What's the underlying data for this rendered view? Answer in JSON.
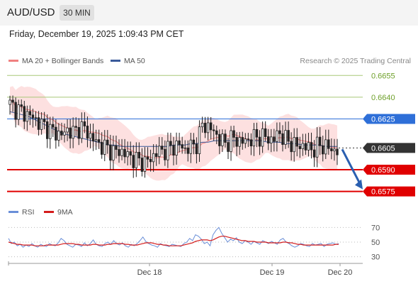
{
  "header": {
    "symbol": "AUD/USD",
    "timeframe": "30 MIN"
  },
  "datetime": "Friday, December 19, 2025 1:09:43 PM CET",
  "legend": {
    "ma20_bb": "MA 20 + Bollinger Bands",
    "ma50": "MA 50",
    "research": "Research © 2025 Trading Central",
    "colors": {
      "ma20": "#f08080",
      "ma50": "#3a5a9a"
    }
  },
  "rsi_legend": {
    "rsi": "RSI",
    "ma9": "9MA",
    "colors": {
      "rsi": "#6a8fd8",
      "ma9": "#d41c1c"
    }
  },
  "chart_data": [
    {
      "type": "candlestick",
      "ylim": [
        0.6565,
        0.6662
      ],
      "levels": [
        {
          "value": 0.6655,
          "label": "0.6655",
          "color": "#a8c878",
          "style": "line",
          "badge": "green-text"
        },
        {
          "value": 0.664,
          "label": "0.6640",
          "color": "#a8c878",
          "style": "line",
          "badge": "green-text"
        },
        {
          "value": 0.6625,
          "label": "0.6625",
          "color": "#2e6fd8",
          "style": "line",
          "badge": "blue"
        },
        {
          "value": 0.6605,
          "label": "0.6605",
          "color": "#333333",
          "style": "dotted",
          "badge": "dark"
        },
        {
          "value": 0.659,
          "label": "0.6590",
          "color": "#e00000",
          "style": "line",
          "badge": "red"
        },
        {
          "value": 0.6575,
          "label": "0.6575",
          "color": "#e00000",
          "style": "line",
          "badge": "red"
        }
      ],
      "x_ticks": [
        "Dec 18",
        "Dec 19",
        "Dec 20"
      ],
      "close_path": [
        0.6635,
        0.6632,
        0.663,
        0.6628,
        0.6626,
        0.6622,
        0.662,
        0.6617,
        0.6615,
        0.6614,
        0.6618,
        0.6615,
        0.662,
        0.6617,
        0.6612,
        0.6608,
        0.6606,
        0.6604,
        0.6602,
        0.6603,
        0.66,
        0.6598,
        0.6596,
        0.6595,
        0.6597,
        0.6602,
        0.6603,
        0.6604,
        0.6606,
        0.6607,
        0.6604,
        0.6606,
        0.6608,
        0.6622,
        0.6619,
        0.6616,
        0.661,
        0.6608,
        0.6612,
        0.661,
        0.6609,
        0.6611,
        0.6612,
        0.6613,
        0.6612,
        0.661,
        0.6616,
        0.6611,
        0.6609,
        0.6606,
        0.6607,
        0.6605,
        0.6604,
        0.6607,
        0.6606,
        0.6604,
        0.6603
      ],
      "ma50_path": [
        0.663,
        0.6629,
        0.6628,
        0.6627,
        0.6625,
        0.6623,
        0.6621,
        0.6619,
        0.6617,
        0.6615,
        0.6614,
        0.6613,
        0.6612,
        0.6611,
        0.661,
        0.6609,
        0.6608,
        0.6607,
        0.6607,
        0.6606,
        0.6606,
        0.6606,
        0.6606,
        0.6606,
        0.6606,
        0.6606,
        0.6606,
        0.6606,
        0.6607,
        0.6607,
        0.6607,
        0.6608,
        0.6608,
        0.6609,
        0.6609,
        0.661,
        0.661,
        0.661,
        0.661,
        0.661,
        0.661,
        0.661,
        0.661,
        0.661,
        0.6609,
        0.6609,
        0.6609,
        0.6608,
        0.6608,
        0.6608,
        0.6607,
        0.6607,
        0.6607,
        0.6607,
        0.6606,
        0.6606,
        0.6606
      ],
      "arrow": {
        "from": 0.6605,
        "to": 0.6575
      }
    },
    {
      "type": "line",
      "name": "RSI",
      "ylim": [
        20,
        80
      ],
      "y_ticks": [
        70,
        50,
        30
      ],
      "rsi": [
        55,
        48,
        50,
        45,
        47,
        43,
        46,
        44,
        48,
        45,
        43,
        47,
        45,
        44,
        48,
        46,
        45,
        49,
        55,
        52,
        47,
        45,
        43,
        47,
        46,
        44,
        49,
        45,
        48,
        53,
        47,
        45,
        44,
        48,
        50,
        47,
        52,
        48,
        46,
        49,
        45,
        43,
        47,
        45,
        48,
        52,
        57,
        51,
        48,
        46,
        45,
        43,
        48,
        46,
        45,
        44,
        47,
        46,
        45,
        44,
        48,
        50,
        55,
        52,
        60,
        58,
        54,
        48,
        50,
        45,
        60,
        66,
        70,
        62,
        56,
        50,
        54,
        52,
        56,
        50,
        48,
        52,
        50,
        47,
        51,
        49,
        47,
        52,
        50,
        48,
        51,
        49,
        47,
        53,
        55,
        50,
        48,
        45,
        43,
        45,
        48,
        47,
        45,
        44,
        48,
        46,
        47,
        48,
        44,
        47,
        48,
        49,
        47,
        48
      ],
      "ma9": [
        50,
        49,
        48,
        47,
        47,
        46,
        46,
        46,
        46,
        45,
        45,
        45,
        45,
        46,
        46,
        46,
        46,
        46,
        47,
        48,
        48,
        48,
        48,
        47,
        47,
        46,
        46,
        46,
        46,
        47,
        47,
        46,
        46,
        46,
        47,
        47,
        48,
        48,
        48,
        48,
        47,
        47,
        46,
        46,
        46,
        47,
        48,
        49,
        49,
        49,
        48,
        47,
        47,
        46,
        46,
        45,
        45,
        45,
        45,
        45,
        46,
        47,
        48,
        49,
        51,
        52,
        53,
        53,
        53,
        52,
        53,
        55,
        57,
        58,
        58,
        57,
        56,
        55,
        54,
        53,
        52,
        52,
        51,
        51,
        51,
        50,
        50,
        50,
        50,
        49,
        49,
        49,
        49,
        49,
        50,
        50,
        49,
        49,
        48,
        47,
        47,
        46,
        46,
        46,
        46,
        46,
        46,
        46,
        46,
        46,
        46,
        46,
        47,
        47
      ]
    }
  ]
}
